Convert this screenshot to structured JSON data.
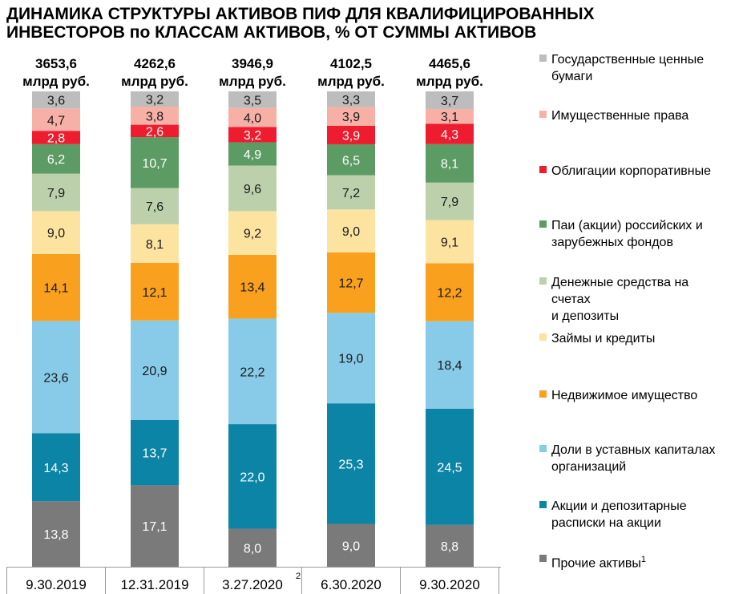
{
  "title_lines": [
    "ДИНАМИКА СТРУКТУРЫ АКТИВОВ ПИФ ДЛЯ КВАЛИФИЦИРОВАННЫХ",
    "ИНВЕСТОРОВ по КЛАССАМ АКТИВОВ, % ОТ СУММЫ АКТИВОВ"
  ],
  "chart_data": {
    "type": "bar",
    "stacked": true,
    "categories": [
      "9.30.2019",
      "12.31.2019",
      "3.27.2020",
      "6.30.2020",
      "9.30.2020"
    ],
    "category_notes": [
      "",
      "",
      "2",
      "",
      ""
    ],
    "totals": [
      "3653,6\nмлрд руб.",
      "4262,6\nмлрд руб.",
      "3946,9\nмлрд руб.",
      "4102,5\nмлрд руб.",
      "4465,6\nмлрд руб."
    ],
    "ylim": [
      0,
      100
    ],
    "legend_position": "right",
    "series": [
      {
        "name": "Прочие активы",
        "note": "1",
        "color": "#7a7a7a",
        "label_color": "#ffffff",
        "values": [
          13.8,
          17.1,
          8.0,
          9.0,
          8.8
        ],
        "labels": [
          "13,8",
          "17,1",
          "8,0",
          "9,0",
          "8,8"
        ]
      },
      {
        "name": "Акции и депозитарные\nрасписки на акции",
        "color": "#0b84a5",
        "label_color": "#ffffff",
        "values": [
          14.3,
          13.7,
          22.0,
          25.3,
          24.5
        ],
        "labels": [
          "14,3",
          "13,7",
          "22,0",
          "25,3",
          "24,5"
        ]
      },
      {
        "name": "Доли в уставных капиталах\nорганизаций",
        "color": "#87cbe9",
        "label_color": "#1a1a1a",
        "values": [
          23.6,
          20.9,
          22.2,
          19.0,
          18.4
        ],
        "labels": [
          "23,6",
          "20,9",
          "22,2",
          "19,0",
          "18,4"
        ]
      },
      {
        "name": "Недвижимое имущество",
        "color": "#f9a11e",
        "label_color": "#1a1a1a",
        "values": [
          14.1,
          12.1,
          13.4,
          12.7,
          12.2
        ],
        "labels": [
          "14,1",
          "12,1",
          "13,4",
          "12,7",
          "12,2"
        ]
      },
      {
        "name": "Займы и кредиты",
        "color": "#fde3a0",
        "label_color": "#1a1a1a",
        "values": [
          9.0,
          8.1,
          9.2,
          9.0,
          9.1
        ],
        "labels": [
          "9,0",
          "8,1",
          "9,2",
          "9,0",
          "9,1"
        ]
      },
      {
        "name": "Денежные средства на\nсчетах\nи депозиты",
        "color": "#bdd0ac",
        "label_color": "#1a1a1a",
        "values": [
          7.9,
          7.6,
          9.6,
          7.2,
          7.9
        ],
        "labels": [
          "7,9",
          "7,6",
          "9,6",
          "7,2",
          "7,9"
        ]
      },
      {
        "name": "Паи (акции) российских и\nзарубежных фондов",
        "color": "#5c9b63",
        "label_color": "#ffffff",
        "values": [
          6.2,
          10.7,
          4.9,
          6.5,
          8.1
        ],
        "labels": [
          "6,2",
          "10,7",
          "4,9",
          "6,5",
          "8,1"
        ]
      },
      {
        "name": "Облигации корпоративные",
        "color": "#ed1c2e",
        "label_color": "#ffffff",
        "values": [
          2.8,
          2.6,
          3.2,
          3.9,
          4.3
        ],
        "labels": [
          "2,8",
          "2,6",
          "3,2",
          "3,9",
          "4,3"
        ]
      },
      {
        "name": "Имущественные права",
        "color": "#f6b0a6",
        "label_color": "#1a1a1a",
        "values": [
          4.7,
          3.8,
          4.0,
          3.9,
          3.1
        ],
        "labels": [
          "4,7",
          "3,8",
          "4,0",
          "3,9",
          "3,1"
        ]
      },
      {
        "name": "Государственные ценные\nбумаги",
        "color": "#bdbdbd",
        "label_color": "#1a1a1a",
        "values": [
          3.6,
          3.2,
          3.5,
          3.3,
          3.7
        ],
        "labels": [
          "3,6",
          "3,2",
          "3,5",
          "3,3",
          "3,7"
        ]
      }
    ]
  }
}
